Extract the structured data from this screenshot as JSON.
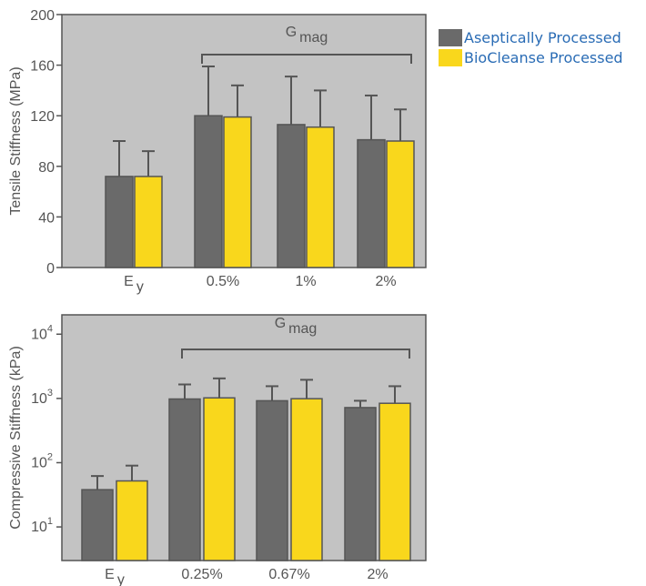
{
  "colors": {
    "panel": "#c3c3c3",
    "aseptic": "#6a6a6a",
    "biocleanse": "#f9d71c",
    "axis": "#555555",
    "text": "#555555",
    "legend_text": "#2a6cb5"
  },
  "legend": [
    {
      "label": "Aseptically Processed",
      "color": "#6a6a6a"
    },
    {
      "label": "BioCleanse Processed",
      "color": "#f9d71c"
    }
  ],
  "chart_data": [
    {
      "type": "bar",
      "ylabel": "Tensile Stiffness (MPa)",
      "ylim": [
        0,
        200
      ],
      "yticks": [
        "0",
        "40",
        "80",
        "120",
        "160",
        "200"
      ],
      "categories": [
        {
          "main": "E",
          "sub": "y"
        },
        {
          "main": "0.5%",
          "sub": ""
        },
        {
          "main": "1%",
          "sub": ""
        },
        {
          "main": "2%",
          "sub": ""
        }
      ],
      "series": [
        {
          "name": "Aseptically Processed",
          "values": [
            72,
            120,
            113,
            101
          ],
          "errors": [
            28,
            39,
            38,
            35
          ]
        },
        {
          "name": "BioCleanse Processed",
          "values": [
            72,
            119,
            111,
            100
          ],
          "errors": [
            20,
            25,
            29,
            25
          ]
        }
      ],
      "bracket": {
        "main": "G",
        "sub": "mag",
        "from_category": 1,
        "to_category": 3
      }
    },
    {
      "type": "bar",
      "ylabel": "Compressive Stiffness (kPa)",
      "yscale": "log",
      "ylim": [
        3,
        20000
      ],
      "yticks": [
        {
          "base": "10",
          "exp": "1"
        },
        {
          "base": "10",
          "exp": "2"
        },
        {
          "base": "10",
          "exp": "3"
        },
        {
          "base": "10",
          "exp": "4"
        }
      ],
      "categories": [
        {
          "main": "E",
          "sub": "y"
        },
        {
          "main": "0.25%",
          "sub": ""
        },
        {
          "main": "0.67%",
          "sub": ""
        },
        {
          "main": "2%",
          "sub": ""
        }
      ],
      "series": [
        {
          "name": "Aseptically Processed",
          "values": [
            38,
            980,
            920,
            720
          ],
          "errors_upper": [
            62,
            1650,
            1550,
            920
          ]
        },
        {
          "name": "BioCleanse Processed",
          "values": [
            52,
            1020,
            990,
            840
          ],
          "errors_upper": [
            90,
            2050,
            1950,
            1550
          ]
        }
      ],
      "bracket": {
        "main": "G",
        "sub": "mag",
        "from_category": 1,
        "to_category": 3
      }
    }
  ]
}
